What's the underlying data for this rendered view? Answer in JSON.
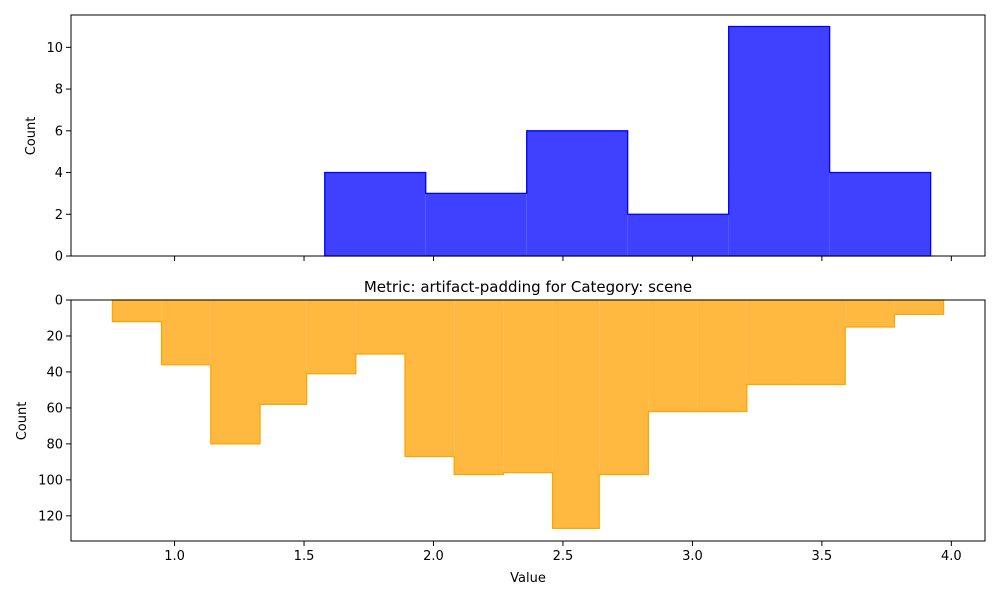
{
  "chart_data": [
    {
      "type": "histogram",
      "title": "",
      "xlabel": "",
      "ylabel": "Count",
      "xlim": [
        0.6,
        4.13
      ],
      "ylim": [
        0,
        11.55
      ],
      "y_inverted": false,
      "x_ticks": [
        1.0,
        1.5,
        2.0,
        2.5,
        3.0,
        3.5,
        4.0
      ],
      "x_tick_labels_visible": false,
      "y_ticks": [
        0,
        2,
        4,
        6,
        8,
        10
      ],
      "y_tick_labels": [
        "0",
        "2",
        "4",
        "6",
        "8",
        "10"
      ],
      "bin_edges": [
        1.58,
        1.97,
        2.36,
        2.75,
        3.14,
        3.53,
        3.92
      ],
      "values": [
        4,
        3,
        6,
        2,
        11,
        4
      ],
      "fill_color": "#4040ff",
      "edge_color": "#0000ff"
    },
    {
      "type": "histogram",
      "title": "Metric: artifact-padding for Category: scene",
      "xlabel": "Value",
      "ylabel": "Count",
      "xlim": [
        0.6,
        4.13
      ],
      "ylim": [
        0,
        134
      ],
      "y_inverted": true,
      "x_ticks": [
        1.0,
        1.5,
        2.0,
        2.5,
        3.0,
        3.5,
        4.0
      ],
      "x_tick_labels": [
        "1.0",
        "1.5",
        "2.0",
        "2.5",
        "3.0",
        "3.5",
        "4.0"
      ],
      "x_tick_labels_visible": true,
      "y_ticks": [
        0,
        20,
        40,
        60,
        80,
        100,
        120
      ],
      "y_tick_labels": [
        "0",
        "20",
        "40",
        "60",
        "80",
        "100",
        "120"
      ],
      "bin_edges": [
        0.76,
        0.95,
        1.14,
        1.33,
        1.51,
        1.7,
        1.89,
        2.08,
        2.27,
        2.46,
        2.64,
        2.83,
        3.02,
        3.21,
        3.4,
        3.59,
        3.78,
        3.97
      ],
      "values": [
        12,
        36,
        80,
        58,
        41,
        30,
        87,
        97,
        96,
        127,
        97,
        62,
        62,
        47,
        47,
        15,
        8
      ],
      "fill_color": "#ffb940",
      "edge_color": "#ffa500"
    }
  ]
}
